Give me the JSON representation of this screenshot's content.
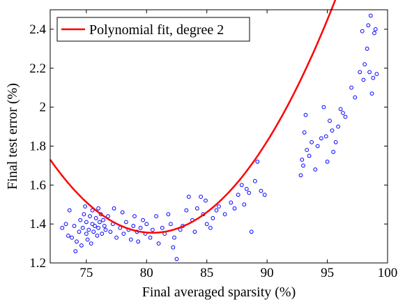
{
  "chart_data": {
    "type": "scatter",
    "title": "",
    "xlabel": "Final averaged sparsity (%)",
    "ylabel": "Final test error (%)",
    "xlim": [
      72,
      100
    ],
    "ylim": [
      1.2,
      2.5
    ],
    "x_ticks": [
      75,
      80,
      85,
      90,
      95,
      100
    ],
    "y_ticks": [
      1.2,
      1.4,
      1.6,
      1.8,
      2.0,
      2.2,
      2.4
    ],
    "x_tick_labels": [
      "75",
      "80",
      "85",
      "90",
      "95",
      "100"
    ],
    "y_tick_labels": [
      "1.2",
      "1.4",
      "1.6",
      "1.8",
      "2",
      "2.2",
      "2.4"
    ],
    "grid": false,
    "legend_position": "top-left",
    "colors": {
      "points": "#0000ff",
      "fit": "#ff0000"
    },
    "series": [
      {
        "name": "",
        "kind": "scatter",
        "marker": "open-circle",
        "points": [
          [
            73.0,
            1.38
          ],
          [
            73.3,
            1.4
          ],
          [
            73.5,
            1.34
          ],
          [
            73.6,
            1.47
          ],
          [
            73.8,
            1.33
          ],
          [
            74.0,
            1.39
          ],
          [
            74.1,
            1.26
          ],
          [
            74.2,
            1.31
          ],
          [
            74.4,
            1.36
          ],
          [
            74.5,
            1.42
          ],
          [
            74.6,
            1.29
          ],
          [
            74.7,
            1.38
          ],
          [
            74.8,
            1.45
          ],
          [
            74.9,
            1.49
          ],
          [
            75.0,
            1.35
          ],
          [
            75.0,
            1.41
          ],
          [
            75.1,
            1.32
          ],
          [
            75.2,
            1.37
          ],
          [
            75.3,
            1.44
          ],
          [
            75.4,
            1.3
          ],
          [
            75.5,
            1.4
          ],
          [
            75.5,
            1.47
          ],
          [
            75.6,
            1.36
          ],
          [
            75.7,
            1.39
          ],
          [
            75.8,
            1.43
          ],
          [
            75.9,
            1.34
          ],
          [
            76.0,
            1.48
          ],
          [
            76.0,
            1.38
          ],
          [
            76.1,
            1.41
          ],
          [
            76.2,
            1.45
          ],
          [
            76.3,
            1.35
          ],
          [
            76.4,
            1.42
          ],
          [
            76.5,
            1.39
          ],
          [
            76.6,
            1.37
          ],
          [
            76.8,
            1.44
          ],
          [
            77.0,
            1.36
          ],
          [
            77.2,
            1.4
          ],
          [
            77.3,
            1.48
          ],
          [
            77.5,
            1.33
          ],
          [
            77.8,
            1.38
          ],
          [
            78.0,
            1.46
          ],
          [
            78.1,
            1.35
          ],
          [
            78.3,
            1.41
          ],
          [
            78.5,
            1.37
          ],
          [
            78.7,
            1.32
          ],
          [
            78.9,
            1.39
          ],
          [
            79.0,
            1.44
          ],
          [
            79.2,
            1.36
          ],
          [
            79.3,
            1.31
          ],
          [
            79.5,
            1.38
          ],
          [
            79.7,
            1.42
          ],
          [
            79.9,
            1.35
          ],
          [
            80.0,
            1.4
          ],
          [
            80.3,
            1.33
          ],
          [
            80.5,
            1.37
          ],
          [
            80.8,
            1.44
          ],
          [
            81.0,
            1.3
          ],
          [
            81.3,
            1.38
          ],
          [
            81.5,
            1.35
          ],
          [
            81.8,
            1.45
          ],
          [
            82.0,
            1.4
          ],
          [
            82.2,
            1.28
          ],
          [
            82.3,
            1.33
          ],
          [
            82.5,
            1.22
          ],
          [
            82.8,
            1.37
          ],
          [
            83.0,
            1.39
          ],
          [
            83.3,
            1.47
          ],
          [
            83.5,
            1.54
          ],
          [
            83.8,
            1.42
          ],
          [
            84.0,
            1.36
          ],
          [
            84.2,
            1.48
          ],
          [
            84.5,
            1.54
          ],
          [
            84.7,
            1.45
          ],
          [
            84.9,
            1.52
          ],
          [
            85.0,
            1.4
          ],
          [
            85.3,
            1.38
          ],
          [
            85.5,
            1.43
          ],
          [
            85.8,
            1.47
          ],
          [
            86.0,
            1.49
          ],
          [
            86.5,
            1.45
          ],
          [
            87.0,
            1.51
          ],
          [
            87.3,
            1.48
          ],
          [
            87.6,
            1.55
          ],
          [
            87.9,
            1.6
          ],
          [
            88.1,
            1.5
          ],
          [
            88.3,
            1.58
          ],
          [
            88.5,
            1.56
          ],
          [
            88.7,
            1.36
          ],
          [
            89.0,
            1.62
          ],
          [
            89.2,
            1.72
          ],
          [
            89.5,
            1.57
          ],
          [
            89.8,
            1.55
          ],
          [
            92.8,
            1.65
          ],
          [
            92.9,
            1.73
          ],
          [
            93.0,
            1.7
          ],
          [
            93.1,
            1.87
          ],
          [
            93.2,
            1.96
          ],
          [
            93.3,
            1.78
          ],
          [
            93.5,
            1.75
          ],
          [
            93.7,
            1.82
          ],
          [
            94.0,
            1.68
          ],
          [
            94.2,
            1.8
          ],
          [
            94.5,
            1.84
          ],
          [
            94.7,
            2.0
          ],
          [
            94.9,
            1.85
          ],
          [
            95.0,
            1.72
          ],
          [
            95.2,
            1.93
          ],
          [
            95.4,
            1.88
          ],
          [
            95.5,
            1.77
          ],
          [
            95.7,
            1.82
          ],
          [
            95.9,
            1.9
          ],
          [
            96.1,
            1.99
          ],
          [
            96.3,
            1.97
          ],
          [
            96.5,
            1.95
          ],
          [
            97.0,
            2.1
          ],
          [
            97.3,
            2.05
          ],
          [
            97.7,
            2.18
          ],
          [
            97.9,
            2.39
          ],
          [
            98.0,
            2.14
          ],
          [
            98.1,
            2.22
          ],
          [
            98.3,
            2.3
          ],
          [
            98.4,
            2.42
          ],
          [
            98.5,
            2.18
          ],
          [
            98.6,
            2.47
          ],
          [
            98.7,
            2.07
          ],
          [
            98.8,
            2.15
          ],
          [
            98.9,
            2.38
          ],
          [
            99.0,
            2.4
          ],
          [
            99.1,
            2.17
          ]
        ]
      },
      {
        "name": "Polynomial fit, degree 2",
        "kind": "line",
        "coefficients": {
          "a": 0.0052,
          "vertex_x": 80.5,
          "vertex_y": 1.355
        }
      }
    ]
  }
}
